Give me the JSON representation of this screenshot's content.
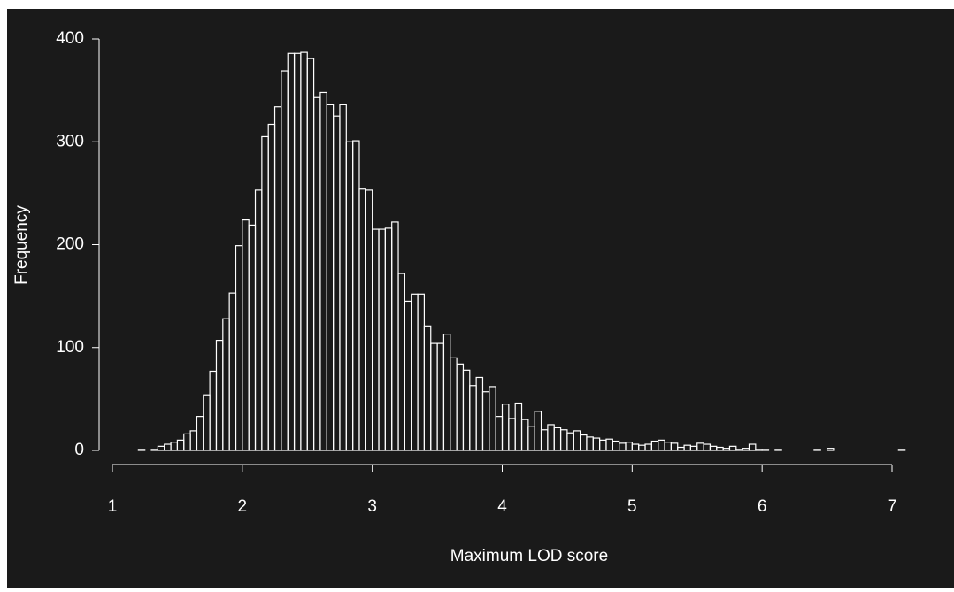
{
  "chart_data": {
    "type": "histogram",
    "xlabel": "Maximum LOD score",
    "ylabel": "Frequency",
    "bins": [
      1.2,
      1.25,
      1.3,
      1.35,
      1.4,
      1.45,
      1.5,
      1.55,
      1.6,
      1.65,
      1.7,
      1.75,
      1.8,
      1.85,
      1.9,
      1.95,
      2,
      2.05,
      2.1,
      2.15,
      2.2,
      2.25,
      2.3,
      2.35,
      2.4,
      2.45,
      2.5,
      2.55,
      2.6,
      2.65,
      2.7,
      2.75,
      2.8,
      2.85,
      2.9,
      2.95,
      3,
      3.05,
      3.1,
      3.15,
      3.2,
      3.25,
      3.3,
      3.35,
      3.4,
      3.45,
      3.5,
      3.55,
      3.6,
      3.65,
      3.7,
      3.75,
      3.8,
      3.85,
      3.9,
      3.95,
      4,
      4.05,
      4.1,
      4.15,
      4.2,
      4.25,
      4.3,
      4.35,
      4.4,
      4.45,
      4.5,
      4.55,
      4.6,
      4.65,
      4.7,
      4.75,
      4.8,
      4.85,
      4.9,
      4.95,
      5,
      5.05,
      5.1,
      5.15,
      5.2,
      5.25,
      5.3,
      5.35,
      5.4,
      5.45,
      5.5,
      5.55,
      5.6,
      5.65,
      5.7,
      5.75,
      5.8,
      5.85,
      5.9,
      5.95,
      6,
      6.05,
      6.1,
      6.15,
      6.2,
      6.25,
      6.3,
      6.35,
      6.4,
      6.45,
      6.5,
      6.55,
      6.6,
      6.65,
      6.7,
      6.75,
      6.8,
      6.85,
      6.9,
      6.95,
      7,
      7.05,
      7.1
    ],
    "values": [
      1,
      0,
      1,
      4,
      6,
      8,
      10,
      16,
      19,
      33,
      54,
      77,
      107,
      128,
      153,
      199,
      224,
      219,
      253,
      305,
      317,
      334,
      369,
      386,
      386,
      387,
      381,
      343,
      348,
      336,
      325,
      336,
      300,
      301,
      254,
      253,
      215,
      215,
      216,
      222,
      172,
      145,
      152,
      152,
      121,
      104,
      104,
      113,
      90,
      84,
      78,
      63,
      71,
      57,
      62,
      33,
      45,
      31,
      46,
      30,
      23,
      38,
      20,
      25,
      22,
      20,
      17,
      19,
      15,
      13,
      12,
      10,
      11,
      9,
      7,
      8,
      6,
      5,
      6,
      9,
      10,
      8,
      7,
      3,
      5,
      4,
      7,
      6,
      4,
      3,
      2,
      4,
      1,
      2,
      6,
      1,
      1,
      0,
      1,
      0,
      0,
      0,
      0,
      0,
      1,
      0,
      2,
      0,
      0,
      0,
      0,
      0,
      0,
      0,
      0,
      0,
      0,
      1
    ],
    "color": "#ffffff",
    "xlim": [
      1,
      7
    ],
    "ylim": [
      0,
      400
    ],
    "xticks": [
      1,
      2,
      3,
      4,
      5,
      6,
      7
    ],
    "yticks": [
      0,
      100,
      200,
      300,
      400
    ]
  }
}
